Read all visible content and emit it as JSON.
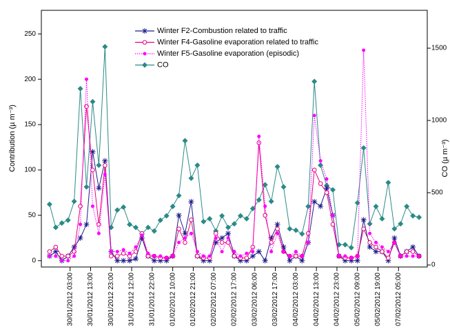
{
  "chart_data": {
    "type": "line",
    "ylabel": "Contribution (µ m⁻³)",
    "y2label": "CO (µ m⁻³)",
    "legend": "upper center",
    "xlim": [
      0,
      188
    ],
    "ylim": [
      -7,
      276
    ],
    "y2lim": [
      -14,
      1762
    ],
    "yticks": [
      0,
      50,
      100,
      150,
      200,
      250
    ],
    "y2ticks": [
      0,
      500,
      1000,
      1500
    ],
    "xticks": [
      {
        "value": 14,
        "label": "30/01/2012 03:00"
      },
      {
        "value": 24,
        "label": "30/01/2012 13:00"
      },
      {
        "value": 34,
        "label": "30/01/2012 23:00"
      },
      {
        "value": 44,
        "label": "31/01/2012 12:00"
      },
      {
        "value": 54,
        "label": "31/01/2012 22:00"
      },
      {
        "value": 64,
        "label": "01/02/2012 10:00"
      },
      {
        "value": 74,
        "label": "01/02/2012 21:00"
      },
      {
        "value": 84,
        "label": "02/02/2012 07:00"
      },
      {
        "value": 94,
        "label": "02/02/2012 17:00"
      },
      {
        "value": 104,
        "label": "03/02/2012 06:00"
      },
      {
        "value": 114,
        "label": "03/02/2012 17:00"
      },
      {
        "value": 124,
        "label": "04/02/2012 03:00"
      },
      {
        "value": 134,
        "label": "04/02/2012 13:00"
      },
      {
        "value": 144,
        "label": "04/02/2012 23:00"
      },
      {
        "value": 154,
        "label": "05/02/2012 09:00"
      },
      {
        "value": 164,
        "label": "05/02/2012 19:00"
      },
      {
        "value": 174,
        "label": "07/02/2012 05:00"
      }
    ],
    "x": [
      4,
      7,
      10,
      13,
      16,
      19,
      22,
      25,
      28,
      31,
      34,
      37,
      40,
      43,
      46,
      49,
      52,
      55,
      58,
      61,
      64,
      67,
      70,
      73,
      76,
      79,
      82,
      85,
      88,
      91,
      94,
      97,
      100,
      103,
      106,
      109,
      112,
      115,
      118,
      121,
      124,
      127,
      130,
      133,
      136,
      139,
      142,
      145,
      148,
      151,
      154,
      157,
      160,
      163,
      166,
      169,
      172,
      175,
      178,
      181,
      184
    ],
    "series": [
      {
        "name": "Winter F2-Combustion related to traffic",
        "color": "#1c1c8c",
        "marker": "star",
        "dash": "solid",
        "values": [
          5,
          10,
          0,
          5,
          15,
          25,
          40,
          120,
          80,
          110,
          10,
          0,
          0,
          0,
          2,
          25,
          5,
          0,
          0,
          0,
          5,
          50,
          30,
          65,
          5,
          0,
          0,
          20,
          25,
          30,
          5,
          0,
          0,
          5,
          10,
          0,
          25,
          40,
          15,
          0,
          5,
          0,
          20,
          65,
          60,
          80,
          50,
          5,
          0,
          0,
          0,
          45,
          15,
          10,
          10,
          0,
          25,
          5,
          10,
          15,
          5
        ]
      },
      {
        "name": "Winter F4-Gasoline evaporation related to traffic",
        "color": "#e6007e",
        "marker": "open-circle",
        "dash": "solid",
        "values": [
          10,
          15,
          5,
          5,
          10,
          60,
          170,
          100,
          40,
          105,
          5,
          5,
          8,
          5,
          10,
          30,
          5,
          5,
          3,
          3,
          5,
          35,
          20,
          45,
          5,
          3,
          3,
          30,
          20,
          20,
          5,
          3,
          3,
          15,
          130,
          50,
          20,
          35,
          10,
          5,
          5,
          5,
          30,
          100,
          85,
          75,
          40,
          5,
          3,
          3,
          5,
          35,
          20,
          15,
          10,
          3,
          20,
          5,
          10,
          10,
          5
        ]
      },
      {
        "name": "Winter F5-Gasoline evaporation (episodic)",
        "color": "#ff00ff",
        "marker": "dot",
        "dash": "dotted",
        "values": [
          5,
          5,
          0,
          0,
          5,
          40,
          200,
          60,
          30,
          95,
          10,
          10,
          12,
          8,
          15,
          28,
          8,
          5,
          5,
          3,
          5,
          20,
          25,
          30,
          10,
          5,
          5,
          25,
          10,
          25,
          10,
          5,
          8,
          10,
          137,
          60,
          10,
          30,
          10,
          5,
          10,
          5,
          20,
          160,
          110,
          90,
          50,
          5,
          5,
          3,
          5,
          232,
          30,
          20,
          15,
          10,
          20,
          5,
          5,
          5,
          5
        ]
      },
      {
        "name": "CO",
        "color": "#2a8a86",
        "marker": "diamond",
        "dash": "solid",
        "axis": "y2",
        "values": [
          420,
          260,
          290,
          310,
          440,
          1220,
          540,
          1130,
          690,
          1510,
          260,
          380,
          400,
          280,
          260,
          215,
          260,
          235,
          310,
          340,
          405,
          480,
          860,
          600,
          690,
          300,
          320,
          235,
          340,
          260,
          285,
          340,
          320,
          390,
          450,
          555,
          440,
          680,
          540,
          250,
          240,
          215,
          405,
          1270,
          690,
          550,
          520,
          140,
          140,
          120,
          430,
          810,
          285,
          405,
          320,
          570,
          250,
          285,
          405,
          340,
          330
        ]
      }
    ]
  }
}
